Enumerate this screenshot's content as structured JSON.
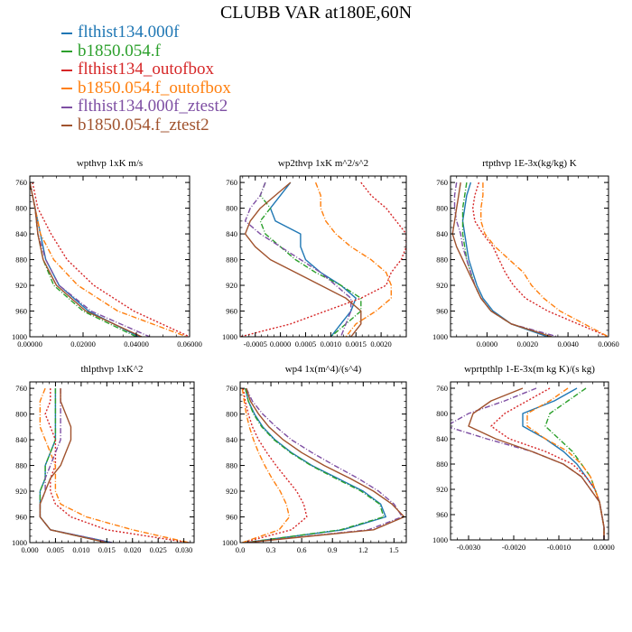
{
  "title": "CLUBB VAR at180E,60N",
  "legend": [
    {
      "name": "flthist134.000f",
      "color": "#1f77b4"
    },
    {
      "name": "b1850.054.f",
      "color": "#2ca02c"
    },
    {
      "name": "flthist134_outofbox",
      "color": "#d62728"
    },
    {
      "name": "b1850.054.f_outofbox",
      "color": "#ff7f0e"
    },
    {
      "name": "flthist134.000f_ztest2",
      "color": "#7e4fa3"
    },
    {
      "name": "b1850.054.f_ztest2",
      "color": "#a0522d"
    }
  ],
  "chart_data": [
    {
      "type": "line",
      "title": "wpthvp  1xK m/s",
      "xlim": [
        0,
        0.06
      ],
      "ylim": [
        1000,
        750
      ],
      "xticks": [
        0,
        0.02,
        0.04,
        0.06
      ],
      "xticklabels": [
        "0.00000",
        "0.02000",
        "0.04000",
        "0.06000"
      ],
      "yticks": [
        760,
        800,
        840,
        880,
        920,
        960,
        1000
      ],
      "y": [
        760,
        800,
        840,
        880,
        920,
        960,
        1000
      ],
      "series": [
        {
          "name": "flthist134.000f",
          "x": [
            0.0,
            0.002,
            0.004,
            0.006,
            0.011,
            0.022,
            0.041
          ]
        },
        {
          "name": "b1850.054.f",
          "x": [
            0.0,
            0.002,
            0.003,
            0.005,
            0.009,
            0.02,
            0.04
          ]
        },
        {
          "name": "flthist134_outofbox",
          "x": [
            0.001,
            0.003,
            0.008,
            0.014,
            0.024,
            0.039,
            0.06
          ]
        },
        {
          "name": "b1850.054.f_outofbox",
          "x": [
            0.0,
            0.002,
            0.004,
            0.009,
            0.018,
            0.033,
            0.059
          ]
        },
        {
          "name": "flthist134.000f_ztest2",
          "x": [
            0.0,
            0.002,
            0.003,
            0.006,
            0.011,
            0.023,
            0.045
          ]
        },
        {
          "name": "b1850.054.f_ztest2",
          "x": [
            0.0,
            0.002,
            0.003,
            0.005,
            0.01,
            0.021,
            0.042
          ]
        }
      ]
    },
    {
      "type": "line",
      "title": "wp2thvp  1xK m^2/s^2",
      "xlim": [
        -0.0008,
        0.0025
      ],
      "ylim": [
        1000,
        750
      ],
      "xticks": [
        -0.0005,
        0,
        0.0005,
        0.001,
        0.0015,
        0.002
      ],
      "xticklabels": [
        "-0.0005",
        "0.0000",
        "0.0005",
        "0.0010",
        "0.0015",
        "0.0020"
      ],
      "yticks": [
        760,
        800,
        840,
        880,
        920,
        960,
        1000
      ],
      "y": [
        760,
        780,
        800,
        820,
        840,
        860,
        880,
        900,
        920,
        940,
        960,
        980,
        1000
      ],
      "series": [
        {
          "name": "flthist134.000f",
          "x": [
            0.0002,
            0.0,
            -0.0002,
            -0.0001,
            0.0004,
            0.0004,
            0.0005,
            0.0008,
            0.0012,
            0.0015,
            0.0014,
            0.0012,
            0.001
          ]
        },
        {
          "name": "b1850.054.f",
          "x": [
            -0.0003,
            -0.0004,
            -0.0002,
            -0.0004,
            -0.0003,
            0.0,
            0.0003,
            0.0007,
            0.0012,
            0.0016,
            0.0016,
            0.0013,
            0.001
          ]
        },
        {
          "name": "flthist134_outofbox",
          "x": [
            0.0016,
            0.0018,
            0.0021,
            0.0023,
            0.0025,
            0.0025,
            0.0024,
            0.0022,
            0.0021,
            0.0016,
            0.0009,
            0.0002,
            -0.0008
          ]
        },
        {
          "name": "b1850.054.f_outofbox",
          "x": [
            0.0007,
            0.0008,
            0.0008,
            0.0009,
            0.0011,
            0.0014,
            0.0018,
            0.0021,
            0.0022,
            0.0022,
            0.0019,
            0.0015,
            0.0013
          ]
        },
        {
          "name": "flthist134.000f_ztest2",
          "x": [
            -0.0003,
            -0.0004,
            -0.0006,
            -0.0007,
            -0.0004,
            0.0,
            0.0004,
            0.0008,
            0.0011,
            0.0014,
            0.0014,
            0.0013,
            0.0012
          ]
        },
        {
          "name": "b1850.054.f_ztest2",
          "x": [
            0.0002,
            -0.0001,
            -0.0004,
            -0.0006,
            -0.0007,
            -0.0005,
            -0.0002,
            0.0003,
            0.0008,
            0.0013,
            0.0016,
            0.0016,
            0.0014
          ]
        }
      ]
    },
    {
      "type": "line",
      "title": "rtpthvp  1E-3x(kg/kg) K",
      "xlim": [
        -0.0018,
        0.006
      ],
      "ylim": [
        1000,
        750
      ],
      "xticks": [
        0,
        0.002,
        0.004,
        0.006
      ],
      "xticklabels": [
        "0.0000",
        "0.0020",
        "0.0040",
        "0.0060"
      ],
      "yticks": [
        760,
        800,
        840,
        880,
        920,
        960,
        1000
      ],
      "y": [
        760,
        780,
        800,
        820,
        840,
        860,
        880,
        900,
        920,
        940,
        960,
        980,
        1000
      ],
      "series": [
        {
          "name": "flthist134.000f",
          "x": [
            -0.0008,
            -0.001,
            -0.0011,
            -0.0012,
            -0.0011,
            -0.001,
            -0.0009,
            -0.0007,
            -0.0005,
            -0.0002,
            0.0003,
            0.0012,
            0.003
          ]
        },
        {
          "name": "b1850.054.f",
          "x": [
            -0.001,
            -0.0011,
            -0.0012,
            -0.0012,
            -0.0012,
            -0.0011,
            -0.001,
            -0.0008,
            -0.0006,
            -0.0003,
            0.0002,
            0.0012,
            0.0032
          ]
        },
        {
          "name": "flthist134_outofbox",
          "x": [
            -0.0004,
            -0.0006,
            -0.0007,
            -0.0006,
            -0.0002,
            0.0003,
            0.0006,
            0.0009,
            0.0013,
            0.0019,
            0.003,
            0.0045,
            0.006
          ]
        },
        {
          "name": "b1850.054.f_outofbox",
          "x": [
            -0.0002,
            -0.0002,
            -0.0003,
            -0.0003,
            -0.0001,
            0.0004,
            0.0011,
            0.0018,
            0.0022,
            0.0028,
            0.0036,
            0.0048,
            0.006
          ]
        },
        {
          "name": "flthist134.000f_ztest2",
          "x": [
            -0.0015,
            -0.0016,
            -0.0016,
            -0.0015,
            -0.0013,
            -0.0012,
            -0.001,
            -0.0008,
            -0.0006,
            -0.0003,
            0.0002,
            0.0012,
            0.0035
          ]
        },
        {
          "name": "b1850.054.f_ztest2",
          "x": [
            -0.0013,
            -0.0014,
            -0.0015,
            -0.0016,
            -0.0017,
            -0.0015,
            -0.0012,
            -0.0009,
            -0.0006,
            -0.0003,
            0.0002,
            0.0012,
            0.0032
          ]
        }
      ]
    },
    {
      "type": "line",
      "title": "thlpthvp  1xK^2",
      "xlim": [
        0,
        0.032
      ],
      "ylim": [
        1000,
        750
      ],
      "xticks": [
        0,
        0.005,
        0.01,
        0.015,
        0.02,
        0.025,
        0.03
      ],
      "xticklabels": [
        "0.000",
        "0.005",
        "0.010",
        "0.015",
        "0.020",
        "0.025",
        "0.030"
      ],
      "yticks": [
        760,
        800,
        840,
        880,
        920,
        960,
        1000
      ],
      "y": [
        760,
        780,
        800,
        820,
        840,
        860,
        880,
        900,
        920,
        940,
        960,
        980,
        1000
      ],
      "series": [
        {
          "name": "flthist134.000f",
          "x": [
            0.005,
            0.005,
            0.005,
            0.005,
            0.005,
            0.004,
            0.003,
            0.003,
            0.002,
            0.002,
            0.002,
            0.004,
            0.016
          ]
        },
        {
          "name": "b1850.054.f",
          "x": [
            0.005,
            0.005,
            0.005,
            0.005,
            0.005,
            0.004,
            0.003,
            0.003,
            0.002,
            0.002,
            0.002,
            0.004,
            0.015
          ]
        },
        {
          "name": "flthist134_outofbox",
          "x": [
            0.004,
            0.004,
            0.003,
            0.004,
            0.005,
            0.005,
            0.005,
            0.004,
            0.004,
            0.005,
            0.008,
            0.015,
            0.031
          ]
        },
        {
          "name": "b1850.054.f_outofbox",
          "x": [
            0.003,
            0.002,
            0.002,
            0.002,
            0.003,
            0.004,
            0.005,
            0.005,
            0.005,
            0.006,
            0.011,
            0.02,
            0.031
          ]
        },
        {
          "name": "flthist134.000f_ztest2",
          "x": [
            0.006,
            0.006,
            0.006,
            0.006,
            0.006,
            0.005,
            0.004,
            0.003,
            0.003,
            0.002,
            0.002,
            0.004,
            0.016
          ]
        },
        {
          "name": "b1850.054.f_ztest2",
          "x": [
            0.006,
            0.006,
            0.007,
            0.008,
            0.008,
            0.007,
            0.006,
            0.004,
            0.003,
            0.002,
            0.002,
            0.004,
            0.015
          ]
        }
      ]
    },
    {
      "type": "line",
      "title": "wp4  1x(m^4)/(s^4)",
      "xlim": [
        0,
        1.62
      ],
      "ylim": [
        1000,
        750
      ],
      "xticks": [
        0,
        0.3,
        0.6,
        0.9,
        1.2,
        1.5
      ],
      "xticklabels": [
        "0.0",
        "0.3",
        "0.6",
        "0.9",
        "1.2",
        "1.5"
      ],
      "yticks": [
        760,
        800,
        840,
        880,
        920,
        960,
        1000
      ],
      "y": [
        760,
        780,
        800,
        820,
        840,
        860,
        880,
        900,
        920,
        940,
        960,
        980,
        1000
      ],
      "series": [
        {
          "name": "flthist134.000f",
          "x": [
            0.05,
            0.08,
            0.14,
            0.22,
            0.34,
            0.5,
            0.7,
            0.95,
            1.2,
            1.37,
            1.42,
            1.0,
            0.05
          ]
        },
        {
          "name": "b1850.054.f",
          "x": [
            0.05,
            0.08,
            0.13,
            0.21,
            0.33,
            0.49,
            0.69,
            0.93,
            1.18,
            1.36,
            1.4,
            0.98,
            0.05
          ]
        },
        {
          "name": "flthist134_outofbox",
          "x": [
            0.03,
            0.05,
            0.08,
            0.12,
            0.18,
            0.26,
            0.35,
            0.45,
            0.55,
            0.62,
            0.65,
            0.5,
            0.02
          ]
        },
        {
          "name": "b1850.054.f_outofbox",
          "x": [
            0.02,
            0.04,
            0.06,
            0.09,
            0.13,
            0.18,
            0.24,
            0.31,
            0.39,
            0.45,
            0.48,
            0.38,
            0.02
          ]
        },
        {
          "name": "flthist134.000f_ztest2",
          "x": [
            0.06,
            0.12,
            0.22,
            0.35,
            0.5,
            0.7,
            0.92,
            1.15,
            1.35,
            1.5,
            1.58,
            1.25,
            0.05
          ]
        },
        {
          "name": "b1850.054.f_ztest2",
          "x": [
            0.06,
            0.1,
            0.18,
            0.28,
            0.42,
            0.6,
            0.82,
            1.07,
            1.3,
            1.48,
            1.6,
            1.3,
            0.06
          ]
        }
      ]
    },
    {
      "type": "line",
      "title": "wprtpthlp  1-E-3x(m kg K)/(s kg)",
      "xlim": [
        -0.0034,
        0.0001
      ],
      "ylim": [
        1000,
        750
      ],
      "xticks": [
        -0.003,
        -0.002,
        -0.001,
        0
      ],
      "xticklabels": [
        "-0.0030",
        "-0.0020",
        "-0.0010",
        "0.0000"
      ],
      "yticks": [
        760,
        800,
        840,
        880,
        920,
        960,
        1000
      ],
      "y": [
        760,
        780,
        800,
        820,
        840,
        860,
        880,
        900,
        920,
        940,
        960,
        980,
        1000
      ],
      "series": [
        {
          "name": "flthist134.000f",
          "x": [
            -0.0006,
            -0.0011,
            -0.0018,
            -0.0018,
            -0.0013,
            -0.0009,
            -0.0006,
            -0.0004,
            -0.0002,
            -0.0001,
            -5e-05,
            0.0,
            0.0
          ]
        },
        {
          "name": "b1850.054.f",
          "x": [
            -0.0004,
            -0.0008,
            -0.0012,
            -0.0013,
            -0.001,
            -0.0007,
            -0.0005,
            -0.0003,
            -0.0002,
            -0.0001,
            -5e-05,
            0.0,
            0.0
          ]
        },
        {
          "name": "flthist134_outofbox",
          "x": [
            -0.0012,
            -0.0017,
            -0.0022,
            -0.0025,
            -0.0021,
            -0.0013,
            -0.0007,
            -0.0004,
            -0.0002,
            -0.0001,
            -5e-05,
            0.0,
            0.0
          ]
        },
        {
          "name": "b1850.054.f_outofbox",
          "x": [
            -0.0008,
            -0.0012,
            -0.0017,
            -0.0017,
            -0.0013,
            -0.0008,
            -0.0005,
            -0.0003,
            -0.0002,
            -0.0001,
            -5e-05,
            0.0,
            0.0
          ]
        },
        {
          "name": "flthist134.000f_ztest2",
          "x": [
            -0.0015,
            -0.0022,
            -0.003,
            -0.0035,
            -0.0026,
            -0.0016,
            -0.0009,
            -0.0005,
            -0.0003,
            -0.0001,
            -5e-05,
            0.0,
            0.0
          ]
        },
        {
          "name": "b1850.054.f_ztest2",
          "x": [
            -0.0018,
            -0.0025,
            -0.0029,
            -0.003,
            -0.0024,
            -0.0016,
            -0.0009,
            -0.0005,
            -0.0003,
            -0.0001,
            -5e-05,
            0.0,
            0.0
          ]
        }
      ]
    }
  ]
}
